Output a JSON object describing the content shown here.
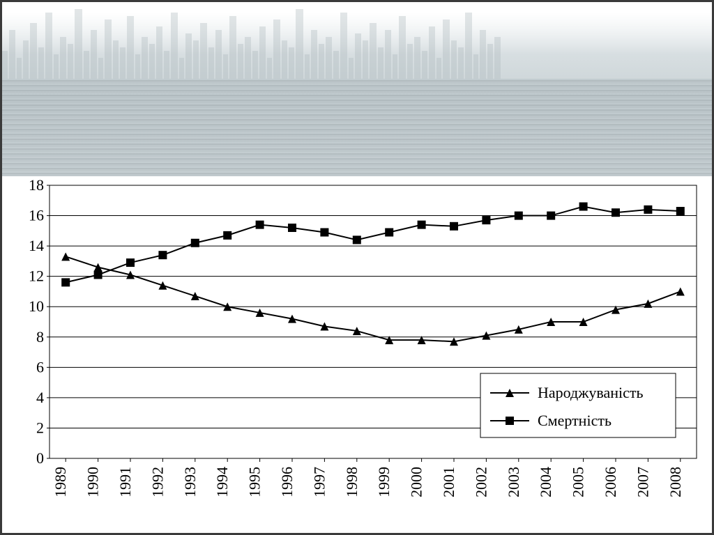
{
  "chart": {
    "type": "line",
    "background_color": "#ffffff",
    "grid_color": "#000000",
    "line_color": "#000000",
    "line_width": 2,
    "marker_size": 12,
    "font_family": "Times New Roman",
    "axis_fontsize": 22,
    "ylim": [
      0,
      18
    ],
    "ytick_step": 2,
    "yticks": [
      0,
      2,
      4,
      6,
      8,
      10,
      12,
      14,
      16,
      18
    ],
    "x_categories": [
      "1989",
      "1990",
      "1991",
      "1992",
      "1993",
      "1994",
      "1995",
      "1996",
      "1997",
      "1998",
      "1999",
      "2000",
      "2001",
      "2002",
      "2003",
      "2004",
      "2005",
      "2006",
      "2007",
      "2008"
    ],
    "series": [
      {
        "key": "birth",
        "label": "Народжуваність",
        "marker": "triangle",
        "values": [
          13.3,
          12.6,
          12.1,
          11.4,
          10.7,
          10.0,
          9.6,
          9.2,
          8.7,
          8.4,
          7.8,
          7.8,
          7.7,
          8.1,
          8.5,
          9.0,
          9.0,
          9.8,
          10.2,
          11.0
        ]
      },
      {
        "key": "death",
        "label": "Смертність",
        "marker": "square",
        "values": [
          11.6,
          12.1,
          12.9,
          13.4,
          14.2,
          14.7,
          15.4,
          15.2,
          14.9,
          14.4,
          14.9,
          15.4,
          15.3,
          15.7,
          16.0,
          16.0,
          16.6,
          16.2,
          16.4,
          16.3
        ]
      }
    ],
    "legend": {
      "position": "inside-bottom-right",
      "box_border": "#000000",
      "box_fill": "#ffffff"
    }
  }
}
